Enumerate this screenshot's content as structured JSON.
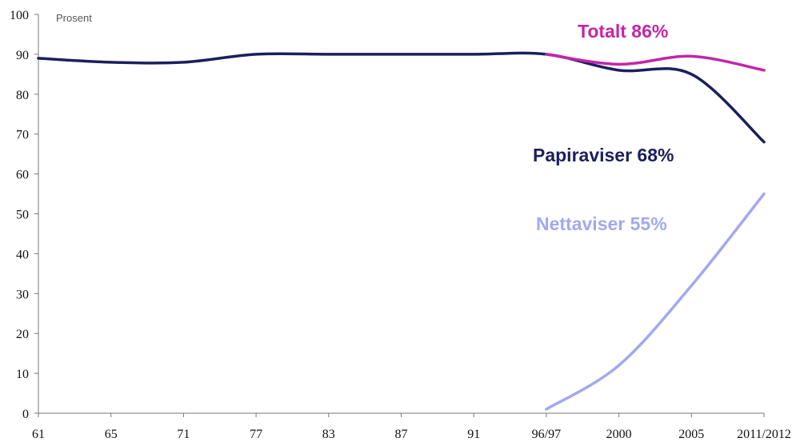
{
  "chart_data": {
    "type": "line",
    "unit_label": "Prosent",
    "categories": [
      "61",
      "65",
      "71",
      "77",
      "83",
      "87",
      "91",
      "96/97",
      "2000",
      "2005",
      "2011/2012"
    ],
    "ylim": [
      0,
      100
    ],
    "yticks": [
      0,
      10,
      20,
      30,
      40,
      50,
      60,
      70,
      80,
      90,
      100
    ],
    "series": [
      {
        "name": "Papiraviser",
        "label": "Papiraviser 68%",
        "color": "#1a1f5e",
        "points": [
          [
            0,
            89
          ],
          [
            1,
            88
          ],
          [
            2,
            88
          ],
          [
            3,
            90
          ],
          [
            4,
            90
          ],
          [
            5,
            90
          ],
          [
            6,
            90
          ],
          [
            7,
            90
          ],
          [
            8,
            86
          ],
          [
            9,
            85
          ],
          [
            10,
            68
          ]
        ]
      },
      {
        "name": "Totalt",
        "label": "Totalt 86%",
        "color": "#c326a8",
        "points": [
          [
            7,
            90
          ],
          [
            8,
            87.5
          ],
          [
            9,
            89.5
          ],
          [
            10,
            86
          ]
        ]
      },
      {
        "name": "Nettaviser",
        "label": "Nettaviser 55%",
        "color": "#a3a8f0",
        "points": [
          [
            7,
            1
          ],
          [
            8,
            12
          ],
          [
            9,
            32
          ],
          [
            10,
            55
          ]
        ]
      }
    ]
  }
}
